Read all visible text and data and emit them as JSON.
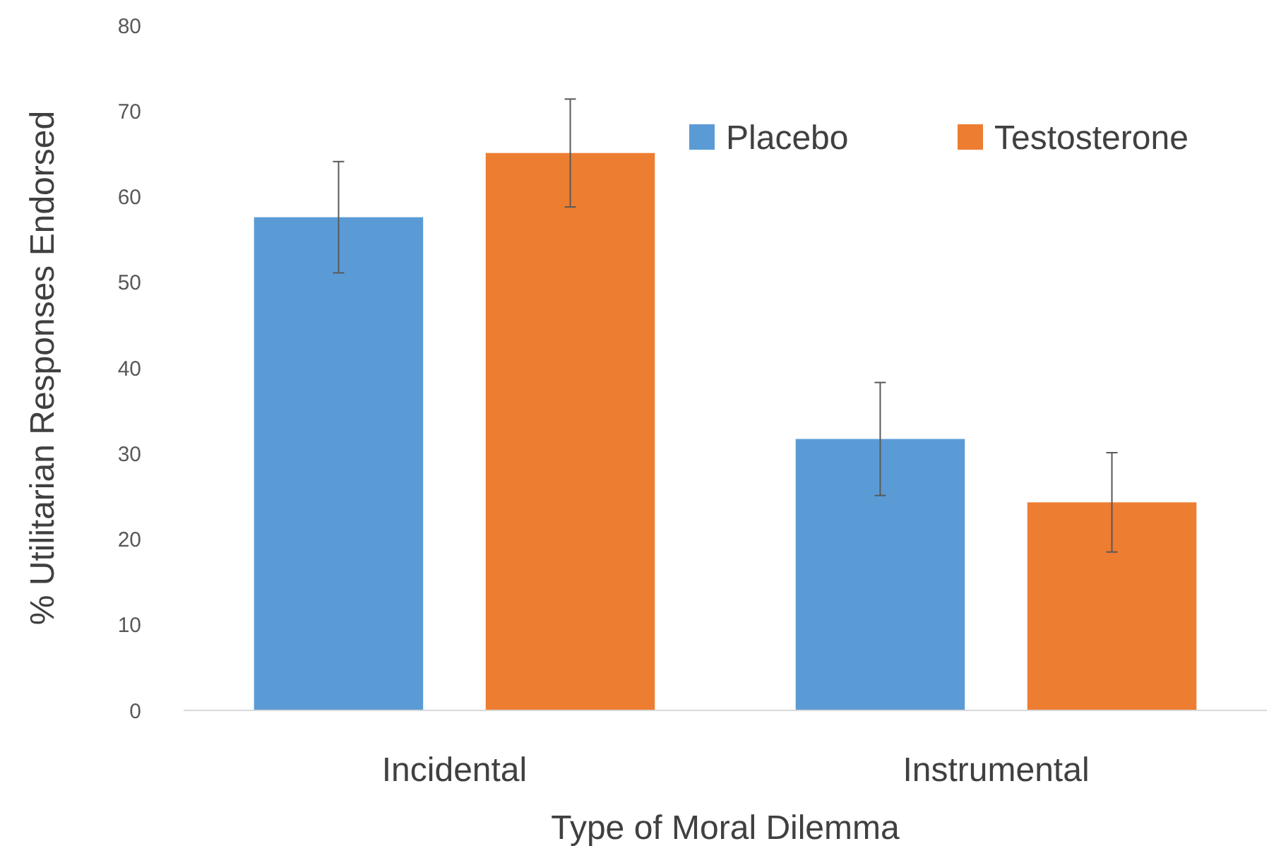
{
  "chart_data": {
    "type": "bar",
    "xlabel": "Type of Moral Dilemma",
    "ylabel": "% Utilitarian Responses Endorsed",
    "categories": [
      "Incidental",
      "Instrumental"
    ],
    "series": [
      {
        "name": "Placebo",
        "color": "#5b9bd5",
        "values": [
          57.6,
          31.7
        ],
        "errors": [
          6.5,
          6.6
        ]
      },
      {
        "name": "Testosterone",
        "color": "#ed7d31",
        "values": [
          65.1,
          24.3
        ],
        "errors": [
          6.3,
          5.8
        ]
      }
    ],
    "ylim": [
      0,
      80
    ],
    "yticks": [
      0,
      10,
      20,
      30,
      40,
      50,
      60,
      70,
      80
    ],
    "grid": false,
    "legend": "top right"
  }
}
